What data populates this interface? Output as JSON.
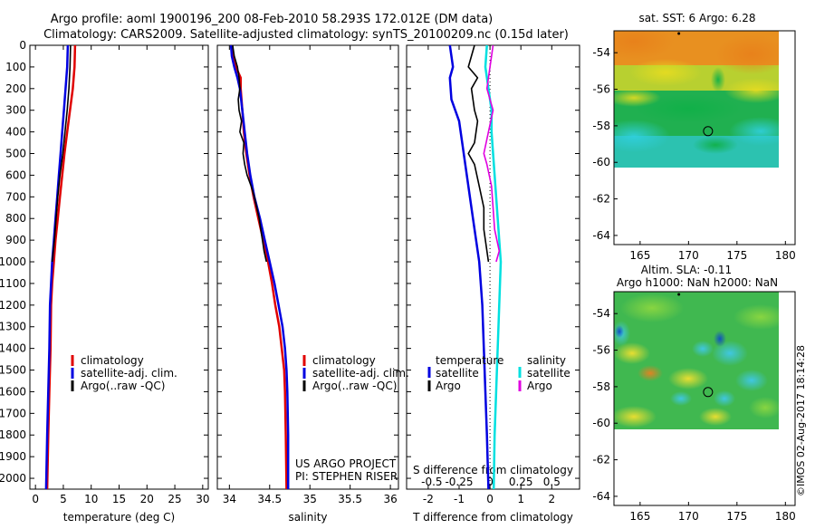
{
  "header": {
    "line1": "Argo profile: aoml 1900196_200 08-Feb-2010 58.293S 172.012E (DM data)",
    "line2": "Climatology: CARS2009. Satellite-adjusted climatology: synTS_20100209.nc (0.15d later)"
  },
  "side_text": "©IMOS 02-Aug-2017 18:14:28",
  "colors": {
    "climatology": "#e00000",
    "satellite": "#0000e0",
    "argo": "#000000",
    "sat_salinity": "#00e0e0",
    "argo_salinity": "#e000e0"
  },
  "chart_data": [
    {
      "type": "line",
      "id": "temperature-profile",
      "xlabel": "temperature (deg C)",
      "xlim": [
        -1,
        31
      ],
      "ylim": [
        2050,
        0
      ],
      "xticks": [
        0,
        5,
        10,
        15,
        20,
        25,
        30
      ],
      "xtick_labels": [
        "0",
        "5",
        "10",
        "15",
        "20",
        "25",
        "30"
      ],
      "yticks": [
        0,
        100,
        200,
        300,
        400,
        500,
        600,
        700,
        800,
        900,
        1000,
        1100,
        1200,
        1300,
        1400,
        1500,
        1600,
        1700,
        1800,
        1900,
        2000
      ],
      "legend": [
        "climatology",
        "satellite-adj. clim.",
        "Argo(..raw -QC)"
      ],
      "series": [
        {
          "name": "climatology",
          "color": "#e00000",
          "width": 2.5,
          "points": [
            [
              7.1,
              0
            ],
            [
              7.0,
              100
            ],
            [
              6.7,
              200
            ],
            [
              6.2,
              300
            ],
            [
              5.7,
              400
            ],
            [
              5.2,
              500
            ],
            [
              4.8,
              600
            ],
            [
              4.4,
              700
            ],
            [
              4.0,
              800
            ],
            [
              3.6,
              900
            ],
            [
              3.3,
              1000
            ],
            [
              3.0,
              1100
            ],
            [
              2.8,
              1200
            ],
            [
              2.7,
              1400
            ],
            [
              2.5,
              1600
            ],
            [
              2.3,
              1800
            ],
            [
              2.1,
              2050
            ]
          ]
        },
        {
          "name": "satellite-adj. clim.",
          "color": "#0000e0",
          "width": 2.5,
          "points": [
            [
              5.8,
              0
            ],
            [
              5.7,
              100
            ],
            [
              5.4,
              200
            ],
            [
              5.1,
              300
            ],
            [
              4.8,
              400
            ],
            [
              4.5,
              500
            ],
            [
              4.2,
              600
            ],
            [
              3.9,
              700
            ],
            [
              3.6,
              800
            ],
            [
              3.3,
              900
            ],
            [
              3.0,
              1000
            ],
            [
              2.8,
              1100
            ],
            [
              2.6,
              1200
            ],
            [
              2.5,
              1400
            ],
            [
              2.3,
              1600
            ],
            [
              2.1,
              1800
            ],
            [
              1.9,
              2050
            ]
          ]
        },
        {
          "name": "Argo(..raw -QC)",
          "color": "#000000",
          "width": 1.6,
          "points": [
            [
              6.3,
              0
            ],
            [
              6.2,
              100
            ],
            [
              6.0,
              200
            ],
            [
              5.7,
              300
            ],
            [
              5.3,
              400
            ],
            [
              4.9,
              500
            ],
            [
              4.4,
              600
            ],
            [
              4.0,
              700
            ],
            [
              3.7,
              800
            ],
            [
              3.4,
              900
            ],
            [
              3.0,
              1000
            ]
          ]
        }
      ]
    },
    {
      "type": "line",
      "id": "salinity-profile",
      "xlabel": "salinity",
      "xlim": [
        33.85,
        36.1
      ],
      "ylim": [
        2050,
        0
      ],
      "xticks": [
        34,
        34.5,
        35,
        35.5,
        36
      ],
      "xtick_labels": [
        "34",
        "34.5",
        "35",
        "35.5",
        "36"
      ],
      "legend": [
        "climatology",
        "satellite-adj. clim.",
        "Argo(..raw -QC)"
      ],
      "annotation": [
        "US ARGO PROJECT",
        "PI: STEPHEN RISER"
      ],
      "series": [
        {
          "name": "climatology",
          "color": "#e00000",
          "width": 2.5,
          "points": [
            [
              34.03,
              0
            ],
            [
              34.05,
              50
            ],
            [
              34.08,
              100
            ],
            [
              34.14,
              150
            ],
            [
              34.14,
              200
            ],
            [
              34.16,
              300
            ],
            [
              34.18,
              400
            ],
            [
              34.21,
              500
            ],
            [
              34.25,
              600
            ],
            [
              34.3,
              700
            ],
            [
              34.36,
              800
            ],
            [
              34.42,
              900
            ],
            [
              34.48,
              1000
            ],
            [
              34.53,
              1100
            ],
            [
              34.57,
              1200
            ],
            [
              34.62,
              1300
            ],
            [
              34.65,
              1400
            ],
            [
              34.68,
              1500
            ],
            [
              34.69,
              1600
            ],
            [
              34.7,
              1800
            ],
            [
              34.71,
              2050
            ]
          ]
        },
        {
          "name": "satellite-adj. clim.",
          "color": "#0000e0",
          "width": 2.5,
          "points": [
            [
              34.02,
              0
            ],
            [
              34.03,
              50
            ],
            [
              34.06,
              100
            ],
            [
              34.1,
              150
            ],
            [
              34.13,
              200
            ],
            [
              34.16,
              300
            ],
            [
              34.19,
              400
            ],
            [
              34.22,
              500
            ],
            [
              34.26,
              600
            ],
            [
              34.31,
              700
            ],
            [
              34.38,
              800
            ],
            [
              34.44,
              900
            ],
            [
              34.5,
              1000
            ],
            [
              34.56,
              1100
            ],
            [
              34.61,
              1200
            ],
            [
              34.66,
              1300
            ],
            [
              34.69,
              1400
            ],
            [
              34.71,
              1500
            ],
            [
              34.72,
              1600
            ],
            [
              34.73,
              1800
            ],
            [
              34.73,
              2050
            ]
          ]
        },
        {
          "name": "Argo(..raw -QC)",
          "color": "#000000",
          "width": 1.6,
          "points": [
            [
              34.04,
              0
            ],
            [
              34.06,
              50
            ],
            [
              34.1,
              100
            ],
            [
              34.12,
              150
            ],
            [
              34.13,
              200
            ],
            [
              34.11,
              250
            ],
            [
              34.12,
              300
            ],
            [
              34.15,
              350
            ],
            [
              34.13,
              400
            ],
            [
              34.18,
              450
            ],
            [
              34.17,
              500
            ],
            [
              34.19,
              550
            ],
            [
              34.22,
              600
            ],
            [
              34.27,
              650
            ],
            [
              34.31,
              700
            ],
            [
              34.34,
              750
            ],
            [
              34.37,
              800
            ],
            [
              34.39,
              850
            ],
            [
              34.41,
              900
            ],
            [
              34.43,
              950
            ],
            [
              34.46,
              1000
            ]
          ]
        }
      ]
    },
    {
      "type": "line",
      "id": "difference-profile",
      "xlabel": "T difference from climatology",
      "xlabel_secondary": "S difference from climatology",
      "xlim": [
        -2.7,
        2.9
      ],
      "ylim": [
        2050,
        0
      ],
      "xticks": [
        -2,
        -1,
        0,
        1,
        2
      ],
      "xtick_labels": [
        "-2",
        "-1",
        "0",
        "1",
        "2"
      ],
      "secondary_xticks": [
        -2,
        -1,
        0,
        1,
        2
      ],
      "secondary_xtick_labels": [
        "-0.5",
        "-0.25",
        "0",
        "0.25",
        "0.5"
      ],
      "zero_line": "dotted",
      "legend_left_title": "temperature",
      "legend_right_title": "salinity",
      "legend": [
        "satellite",
        "Argo",
        "satellite",
        "Argo"
      ],
      "series": [
        {
          "name": "satellite",
          "color": "#0000e0",
          "width": 2.5,
          "points": [
            [
              -1.3,
              0
            ],
            [
              -1.2,
              100
            ],
            [
              -1.3,
              150
            ],
            [
              -1.25,
              250
            ],
            [
              -1.0,
              350
            ],
            [
              -0.9,
              450
            ],
            [
              -0.75,
              600
            ],
            [
              -0.55,
              800
            ],
            [
              -0.35,
              1000
            ],
            [
              -0.25,
              1200
            ],
            [
              -0.2,
              1400
            ],
            [
              -0.15,
              1600
            ],
            [
              -0.1,
              1800
            ],
            [
              -0.05,
              2050
            ]
          ]
        },
        {
          "name": "Argo",
          "color": "#000000",
          "width": 1.6,
          "points": [
            [
              -0.5,
              0
            ],
            [
              -0.7,
              100
            ],
            [
              -0.4,
              150
            ],
            [
              -0.6,
              200
            ],
            [
              -0.5,
              300
            ],
            [
              -0.4,
              350
            ],
            [
              -0.5,
              450
            ],
            [
              -0.7,
              500
            ],
            [
              -0.5,
              550
            ],
            [
              -0.35,
              650
            ],
            [
              -0.2,
              750
            ],
            [
              -0.2,
              850
            ],
            [
              -0.15,
              900
            ],
            [
              -0.05,
              1000
            ]
          ]
        },
        {
          "name": "satellite",
          "color": "#00e0e0",
          "width": 2.5,
          "points": [
            [
              -0.1,
              0
            ],
            [
              -0.15,
              100
            ],
            [
              -0.05,
              200
            ],
            [
              0.05,
              300
            ],
            [
              0.05,
              400
            ],
            [
              0.1,
              500
            ],
            [
              0.15,
              600
            ],
            [
              0.2,
              700
            ],
            [
              0.25,
              800
            ],
            [
              0.3,
              900
            ],
            [
              0.35,
              1000
            ],
            [
              0.3,
              1200
            ],
            [
              0.25,
              1400
            ],
            [
              0.2,
              1600
            ],
            [
              0.15,
              1800
            ],
            [
              0.12,
              2050
            ]
          ]
        },
        {
          "name": "Argo",
          "color": "#e000e0",
          "width": 1.6,
          "points": [
            [
              0.1,
              0
            ],
            [
              0.0,
              100
            ],
            [
              -0.1,
              200
            ],
            [
              0.1,
              300
            ],
            [
              -0.05,
              400
            ],
            [
              -0.2,
              500
            ],
            [
              -0.1,
              550
            ],
            [
              0.05,
              650
            ],
            [
              0.1,
              750
            ],
            [
              0.15,
              850
            ],
            [
              0.3,
              950
            ],
            [
              0.2,
              1000
            ]
          ]
        }
      ]
    },
    {
      "type": "heatmap",
      "id": "sst-map",
      "title": "sat. SST: 6 Argo: 6.28",
      "xlim": [
        162.3,
        181
      ],
      "ylim": [
        -64.5,
        -52.8
      ],
      "data_extent": {
        "lon": [
          162.3,
          180.5
        ],
        "lat": [
          -60,
          -52.8
        ]
      },
      "xticks": [
        165,
        170,
        175,
        180
      ],
      "xtick_labels": [
        "165",
        "170",
        "175",
        "180"
      ],
      "yticks": [
        -54,
        -56,
        -58,
        -60,
        -62,
        -64
      ],
      "ytick_labels": [
        "-54",
        "-56",
        "-58",
        "-60",
        "-62",
        "-64"
      ],
      "profile_location": {
        "lon": 172.012,
        "lat": -58.293
      }
    },
    {
      "type": "heatmap",
      "id": "sla-map",
      "title_lines": [
        "Altim. SLA: -0.11",
        "Argo h1000: NaN h2000: NaN"
      ],
      "xlim": [
        162.3,
        181
      ],
      "ylim": [
        -64.5,
        -52.8
      ],
      "data_extent": {
        "lon": [
          162.3,
          180.5
        ],
        "lat": [
          -60,
          -52.8
        ]
      },
      "xticks": [
        165,
        170,
        175,
        180
      ],
      "xtick_labels": [
        "165",
        "170",
        "175",
        "180"
      ],
      "yticks": [
        -54,
        -56,
        -58,
        -60,
        -62,
        -64
      ],
      "ytick_labels": [
        "-54",
        "-56",
        "-58",
        "-60",
        "-62",
        "-64"
      ],
      "profile_location": {
        "lon": 172.012,
        "lat": -58.293
      }
    }
  ]
}
